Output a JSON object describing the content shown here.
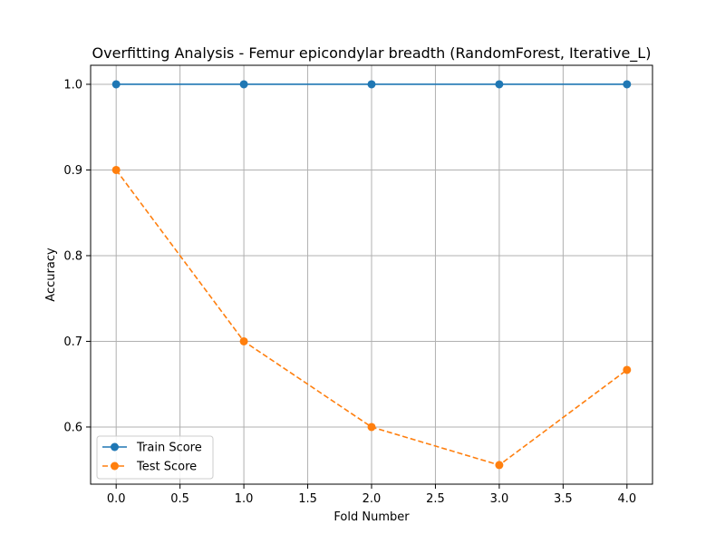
{
  "chart_data": {
    "type": "line",
    "title": "Overfitting Analysis - Femur epicondylar breadth (RandomForest, Iterative_L)",
    "xlabel": "Fold Number",
    "ylabel": "Accuracy",
    "x": [
      0,
      1,
      2,
      3,
      4
    ],
    "xlim": [
      -0.2,
      4.2
    ],
    "ylim": [
      0.5333,
      1.0222
    ],
    "xticks": [
      0.0,
      0.5,
      1.0,
      1.5,
      2.0,
      2.5,
      3.0,
      3.5,
      4.0
    ],
    "xtick_labels": [
      "0.0",
      "0.5",
      "1.0",
      "1.5",
      "2.0",
      "2.5",
      "3.0",
      "3.5",
      "4.0"
    ],
    "yticks": [
      0.6,
      0.7,
      0.8,
      0.9,
      1.0
    ],
    "ytick_labels": [
      "0.6",
      "0.7",
      "0.8",
      "0.9",
      "1.0"
    ],
    "grid": true,
    "legend_position": "lower-left",
    "series": [
      {
        "name": "Train Score",
        "values": [
          1.0,
          1.0,
          1.0,
          1.0,
          1.0
        ],
        "color": "#1f77b4",
        "line_style": "solid",
        "marker": "circle"
      },
      {
        "name": "Test Score",
        "values": [
          0.9,
          0.7,
          0.6,
          0.5556,
          0.6667
        ],
        "color": "#ff7f0e",
        "line_style": "dashed",
        "marker": "circle"
      }
    ]
  }
}
